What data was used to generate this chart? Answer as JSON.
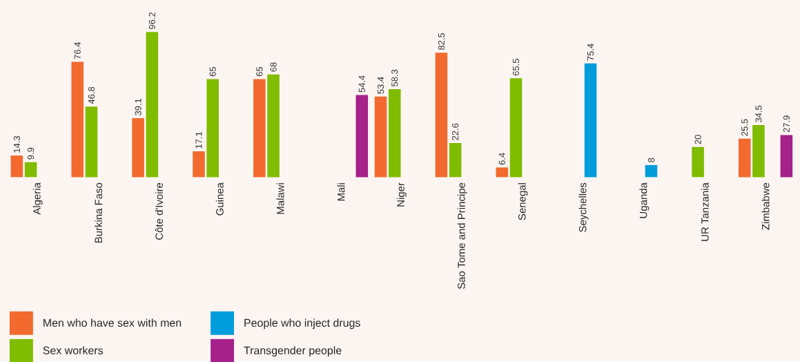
{
  "chart_data": {
    "type": "bar",
    "categories": [
      "Algeria",
      "Burkina Faso",
      "Côte d'Ivoire",
      "Guinea",
      "Malawi",
      "Mali",
      "Niger",
      "Sao Tome and Principe",
      "Senegal",
      "Seychelles",
      "Uganda",
      "UR Tanzania",
      "Zimbabwe"
    ],
    "series": [
      {
        "name": "Men who have sex with men",
        "color": "#f26a2e",
        "values": [
          14.3,
          76.4,
          39.1,
          17.1,
          65,
          null,
          53.4,
          82.5,
          6.4,
          null,
          null,
          null,
          25.5
        ]
      },
      {
        "name": "Sex workers",
        "color": "#80bc00",
        "values": [
          9.9,
          46.8,
          96.2,
          65,
          68,
          null,
          58.3,
          22.6,
          65.5,
          null,
          null,
          20,
          34.5
        ]
      },
      {
        "name": "People who inject drugs",
        "color": "#009ddc",
        "values": [
          null,
          null,
          null,
          null,
          null,
          null,
          null,
          null,
          null,
          75.4,
          8,
          null,
          null
        ]
      },
      {
        "name": "Transgender people",
        "color": "#a6218a",
        "values": [
          null,
          null,
          null,
          null,
          null,
          54.4,
          null,
          null,
          null,
          null,
          null,
          null,
          27.9
        ]
      }
    ],
    "data_labels": true,
    "tick_labels": "x",
    "legend": "bottom left"
  }
}
